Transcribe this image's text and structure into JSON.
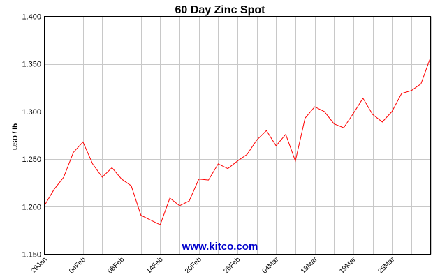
{
  "chart_data": {
    "type": "line",
    "title": "60 Day Zinc Spot",
    "ylabel": "USD / lb",
    "xlabel": "",
    "ylim": [
      1.15,
      1.4
    ],
    "yticks": [
      "1.150",
      "1.200",
      "1.250",
      "1.300",
      "1.350",
      "1.400"
    ],
    "ytick_values": [
      1.15,
      1.2,
      1.25,
      1.3,
      1.35,
      1.4
    ],
    "xticks": [
      "29Jan",
      "04Feb",
      "08Feb",
      "14Feb",
      "20Feb",
      "26Feb",
      "04Mar",
      "13Mar",
      "19Mar",
      "25Mar"
    ],
    "xtick_index": [
      0,
      4,
      8,
      12,
      16,
      20,
      24,
      28,
      32,
      36
    ],
    "grid": true,
    "series": [
      {
        "color": "#ff0000",
        "values": [
          1.201,
          1.218,
          1.231,
          1.257,
          1.268,
          1.245,
          1.231,
          1.241,
          1.229,
          1.222,
          1.191,
          1.186,
          1.181,
          1.209,
          1.201,
          1.206,
          1.229,
          1.228,
          1.245,
          1.24,
          1.248,
          1.255,
          1.27,
          1.28,
          1.264,
          1.276,
          1.248,
          1.293,
          1.305,
          1.3,
          1.287,
          1.283,
          1.298,
          1.314,
          1.297,
          1.289,
          1.3,
          1.319,
          1.322,
          1.329,
          1.357
        ]
      }
    ],
    "watermark": "www.kitco.com",
    "watermark_color": "#0000cc"
  }
}
